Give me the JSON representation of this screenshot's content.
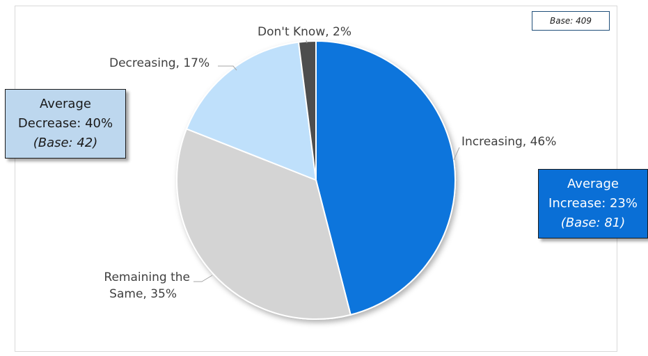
{
  "chart_data": {
    "type": "pie",
    "slices": [
      {
        "label": "Increasing",
        "value": 46,
        "color": "#0a75dc"
      },
      {
        "label": "Remaining the Same",
        "value": 35,
        "color": "#d4d4d4"
      },
      {
        "label": "Decreasing",
        "value": 17,
        "color": "#bfe0fb"
      },
      {
        "label": "Don't Know",
        "value": 2,
        "color": "#4d4d4d"
      }
    ],
    "labels": {
      "increasing": "Increasing, 46%",
      "remaining_line1": "Remaining the",
      "remaining_line2": "Same, 35%",
      "decreasing": "Decreasing, 17%",
      "dont_know": "Don't Know, 2%"
    },
    "base": "Base: 409",
    "callouts": {
      "decrease": {
        "line1": "Average",
        "line2": "Decrease: 40%",
        "line3": "(Base: 42)",
        "color": "#bdd7ee"
      },
      "increase": {
        "line1": "Average",
        "line2": "Increase: 23%",
        "line3": "(Base: 81)",
        "color": "#0a6fd6"
      }
    }
  }
}
